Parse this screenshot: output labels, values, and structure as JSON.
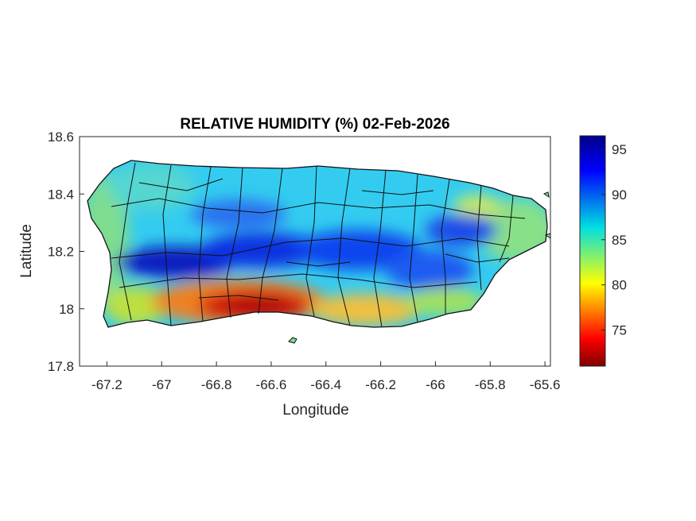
{
  "title": "RELATIVE HUMIDITY (%) 02-Feb-2026",
  "xlabel": "Longitude",
  "ylabel": "Latitude",
  "x_ticks": [
    "-67.2",
    "-67",
    "-66.8",
    "-66.6",
    "-66.4",
    "-66.2",
    "-66",
    "-65.8",
    "-65.6"
  ],
  "y_ticks": [
    "18.6",
    "18.4",
    "18.2",
    "18",
    "17.8"
  ],
  "colorbar": {
    "ticks": [
      "95",
      "90",
      "85",
      "80",
      "75"
    ],
    "min": 71,
    "max": 96.5,
    "colormap": "jet"
  },
  "chart_data": {
    "type": "heatmap",
    "variable": "RELATIVE HUMIDITY (%)",
    "date": "02-Feb-2026",
    "xlim": [
      -67.3,
      -65.58
    ],
    "ylim": [
      17.8,
      18.6
    ],
    "regions": [
      {
        "zone": "north coast",
        "value": 87
      },
      {
        "zone": "west coast",
        "value": 83
      },
      {
        "zone": "central interior",
        "value": 94
      },
      {
        "zone": "east",
        "value": 85
      },
      {
        "zone": "south-central coast",
        "value": 73
      },
      {
        "zone": "southeast coast",
        "value": 81
      }
    ]
  }
}
